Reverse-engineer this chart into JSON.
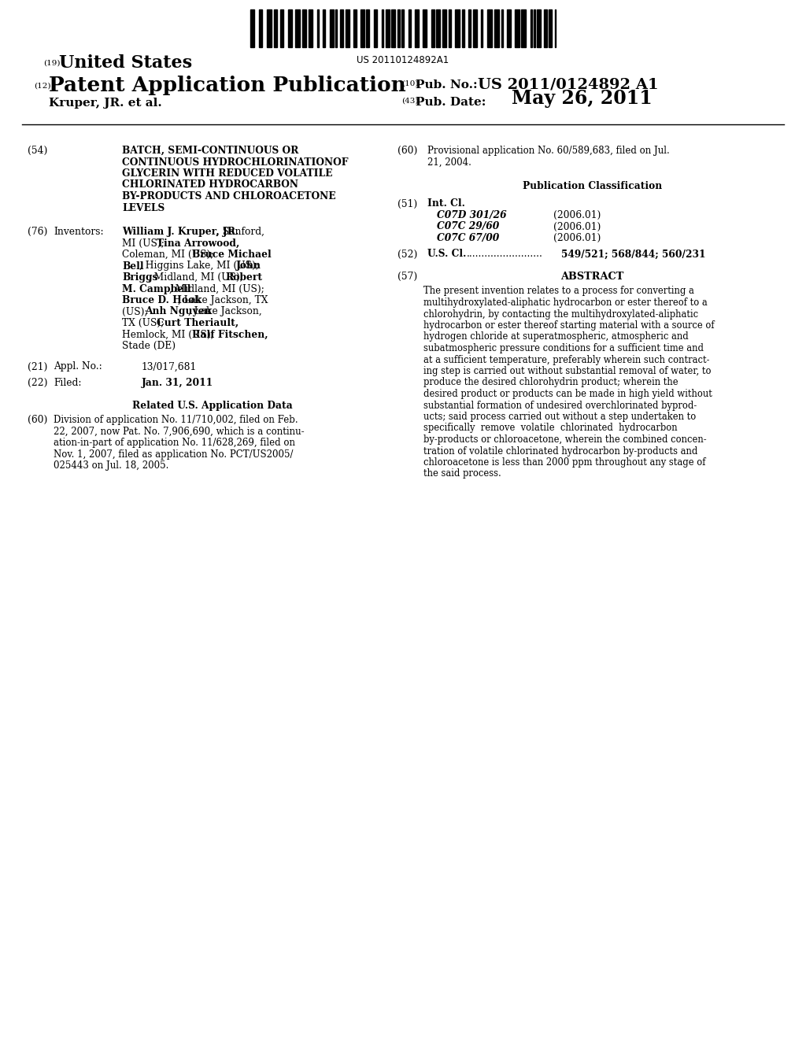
{
  "background_color": "#ffffff",
  "barcode_text": "US 20110124892A1",
  "label_19": "(19)",
  "united_states": "United States",
  "label_12": "(12)",
  "patent_app_pub": "Patent Application Publication",
  "label_10": "(10)",
  "pub_no_label": "Pub. No.:",
  "pub_no_value": "US 2011/0124892 A1",
  "author_line": "Kruper, JR. et al.",
  "label_43": "(43)",
  "pub_date_label": "Pub. Date:",
  "pub_date_value": "May 26, 2011",
  "label_54": "(54)",
  "title_lines": [
    "BATCH, SEMI-CONTINUOUS OR",
    "CONTINUOUS HYDROCHLORINATIONOF",
    "GLYCERIN WITH REDUCED VOLATILE",
    "CHLORINATED HYDROCARBON",
    "BY-PRODUCTS AND CHLOROACETONE",
    "LEVELS"
  ],
  "label_76": "(76)",
  "inventors_label": "Inventors:",
  "label_21": "(21)",
  "appl_no_label": "Appl. No.:",
  "appl_no_value": "13/017,681",
  "label_22": "(22)",
  "filed_label": "Filed:",
  "filed_value": "Jan. 31, 2011",
  "related_header": "Related U.S. Application Data",
  "label_60_related": "(60)",
  "related_lines": [
    "Division of application No. 11/710,002, filed on Feb.",
    "22, 2007, now Pat. No. 7,906,690, which is a continu-",
    "ation-in-part of application No. 11/628,269, filed on",
    "Nov. 1, 2007, filed as application No. PCT/US2005/",
    "025443 on Jul. 18, 2005."
  ],
  "label_60_right": "(60)",
  "prov_lines": [
    "Provisional application No. 60/589,683, filed on Jul.",
    "21, 2004."
  ],
  "pub_classification_header": "Publication Classification",
  "label_51": "(51)",
  "int_cl_label": "Int. Cl.",
  "int_cl_entries": [
    [
      "C07D 301/26",
      "(2006.01)"
    ],
    [
      "C07C 29/60",
      "(2006.01)"
    ],
    [
      "C07C 67/00",
      "(2006.01)"
    ]
  ],
  "label_52": "(52)",
  "us_cl_label": "U.S. Cl.",
  "us_cl_dots": ".........................",
  "us_cl_value": "549/521; 568/844; 560/231",
  "label_57": "(57)",
  "abstract_header": "ABSTRACT",
  "abstract_lines": [
    "The present invention relates to a process for converting a",
    "multihydroxylated-aliphatic hydrocarbon or ester thereof to a",
    "chlorohydrin, by contacting the multihydroxylated-aliphatic",
    "hydrocarbon or ester thereof starting material with a source of",
    "hydrogen chloride at superatmospheric, atmospheric and",
    "subatmospheric pressure conditions for a sufficient time and",
    "at a sufficient temperature, preferably wherein such contract-",
    "ing step is carried out without substantial removal of water, to",
    "produce the desired chlorohydrin product; wherein the",
    "desired product or products can be made in high yield without",
    "substantial formation of undesired overchlorinated byprod-",
    "ucts; said process carried out without a step undertaken to",
    "specifically  remove  volatile  chlorinated  hydrocarbon",
    "by-products or chloroacetone, wherein the combined concen-",
    "tration of volatile chlorinated hydrocarbon by-products and",
    "chloroacetone is less than 2000 ppm throughout any stage of",
    "the said process."
  ],
  "inventors_rows": [
    [
      [
        "William J. Kruper, JR.",
        true
      ],
      [
        ", Sanford,",
        false
      ]
    ],
    [
      [
        "MI (US); ",
        false
      ],
      [
        "Tina Arrowood,",
        true
      ]
    ],
    [
      [
        "Coleman, MI (US); ",
        false
      ],
      [
        "Bruce Michael",
        true
      ]
    ],
    [
      [
        "Bell",
        true
      ],
      [
        ", Higgins Lake, MI (US); ",
        false
      ],
      [
        "John",
        true
      ]
    ],
    [
      [
        "Briggs",
        true
      ],
      [
        ", Midland, MI (US); ",
        false
      ],
      [
        "Robert",
        true
      ]
    ],
    [
      [
        "M. Campbell",
        true
      ],
      [
        ", Midland, MI (US);",
        false
      ]
    ],
    [
      [
        "Bruce D. Hook",
        true
      ],
      [
        ", Lake Jackson, TX",
        false
      ]
    ],
    [
      [
        "(US); ",
        false
      ],
      [
        "Anh Nguyen",
        true
      ],
      [
        ", Lake Jackson,",
        false
      ]
    ],
    [
      [
        "TX (US); ",
        false
      ],
      [
        "Curt Theriault,",
        true
      ]
    ],
    [
      [
        "Hemlock, MI (US); ",
        false
      ],
      [
        "Ralf Fitschen,",
        true
      ]
    ],
    [
      [
        "Stade (DE)",
        false
      ]
    ]
  ]
}
